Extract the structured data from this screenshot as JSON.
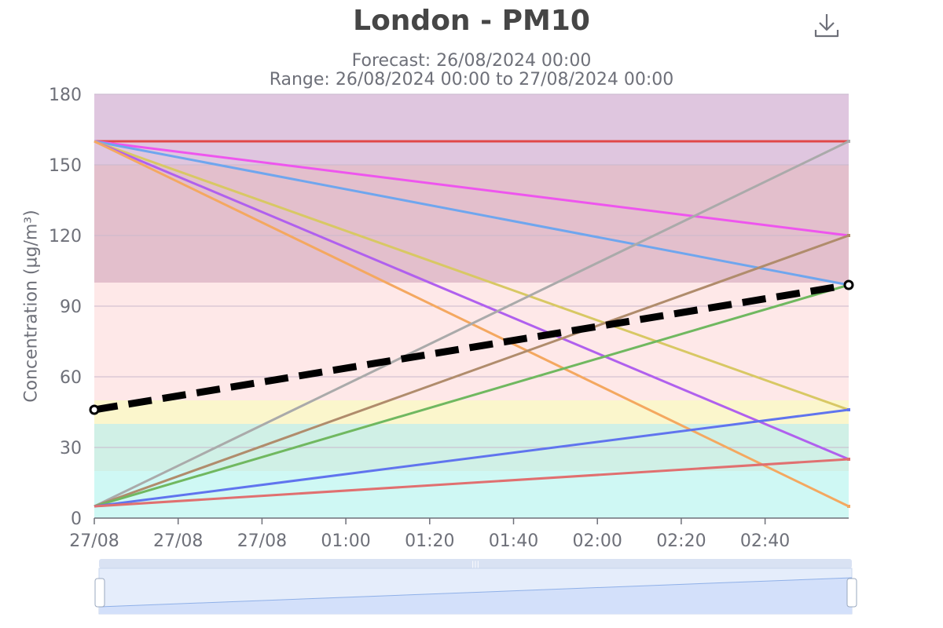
{
  "title": "London - PM10",
  "subtitle_forecast": "Forecast: 26/08/2024 00:00",
  "subtitle_range": "Range: 26/08/2024 00:00 to 27/08/2024 00:00",
  "toolbar": {
    "download_icon": "download-icon"
  },
  "chart_data": {
    "type": "line",
    "ylabel": "Concentration (µg/m³)",
    "ylim": [
      0,
      180
    ],
    "y_ticks": [
      0,
      30,
      60,
      90,
      120,
      150,
      180
    ],
    "x_tick_labels": [
      "27/08",
      "27/08",
      "27/08",
      "01:00",
      "01:20",
      "01:40",
      "02:00",
      "02:20",
      "02:40"
    ],
    "grid": true,
    "bands": [
      {
        "from": 0,
        "to": 20,
        "color": "#cff8f4"
      },
      {
        "from": 20,
        "to": 40,
        "color": "#d0f0e6"
      },
      {
        "from": 40,
        "to": 50,
        "color": "#fbf6cc"
      },
      {
        "from": 50,
        "to": 100,
        "color": "#fee8e8"
      },
      {
        "from": 100,
        "to": 150,
        "color": "#e3bfcc"
      },
      {
        "from": 150,
        "to": 180,
        "color": "#dfc6df"
      }
    ],
    "series": [
      {
        "x": [
          0,
          1
        ],
        "values": [
          160,
          160
        ],
        "color": "#e04848"
      },
      {
        "x": [
          0,
          1
        ],
        "values": [
          160,
          120
        ],
        "color": "#ee55ee"
      },
      {
        "x": [
          0,
          1
        ],
        "values": [
          160,
          99
        ],
        "color": "#6fa6ee"
      },
      {
        "x": [
          0,
          1
        ],
        "values": [
          160,
          46
        ],
        "color": "#d8c864"
      },
      {
        "x": [
          0,
          1
        ],
        "values": [
          160,
          25
        ],
        "color": "#b060ee"
      },
      {
        "x": [
          0,
          1
        ],
        "values": [
          160,
          5
        ],
        "color": "#f4a860"
      },
      {
        "x": [
          0,
          1
        ],
        "values": [
          5,
          160
        ],
        "color": "#aaaaaa"
      },
      {
        "x": [
          0,
          1
        ],
        "values": [
          5,
          120
        ],
        "color": "#b08c6c"
      },
      {
        "x": [
          0,
          1
        ],
        "values": [
          5,
          99
        ],
        "color": "#70b860"
      },
      {
        "x": [
          0,
          1
        ],
        "values": [
          5,
          46
        ],
        "color": "#6074ee"
      },
      {
        "x": [
          0,
          1
        ],
        "values": [
          5,
          25
        ],
        "color": "#e07070"
      },
      {
        "x": [
          0,
          1
        ],
        "values": [
          46,
          99
        ],
        "color": "#000000",
        "dashed": true
      }
    ]
  }
}
